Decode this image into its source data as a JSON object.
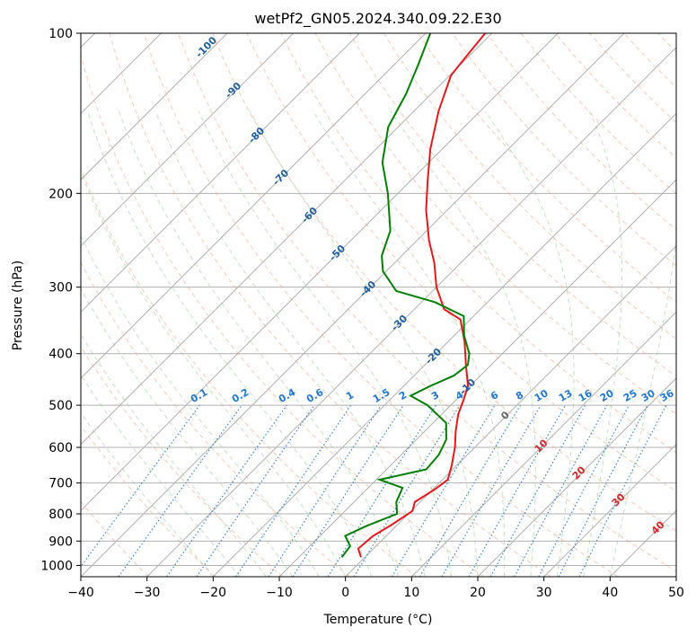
{
  "chart_data": {
    "type": "line",
    "title": "wetPf2_GN05.2024.340.09.22.E30",
    "xlabel": "Temperature (°C)",
    "ylabel": "Pressure (hPa)",
    "xlim": [
      -40,
      50
    ],
    "ylim": [
      1050,
      100
    ],
    "y_scale": "log",
    "skew": "45°",
    "x_ticks": [
      -40,
      -30,
      -20,
      -10,
      0,
      10,
      20,
      30,
      40,
      50
    ],
    "y_ticks": [
      100,
      200,
      300,
      400,
      500,
      600,
      700,
      800,
      900,
      1000
    ],
    "grid": true,
    "series": [
      {
        "role": "temperature",
        "color": "#e31a1c",
        "points": [
          {
            "p": 965,
            "t": -0.6
          },
          {
            "p": 930,
            "t": -2.3
          },
          {
            "p": 880,
            "t": -2.0
          },
          {
            "p": 840,
            "t": -0.9
          },
          {
            "p": 790,
            "t": 0.2
          },
          {
            "p": 760,
            "t": -0.8
          },
          {
            "p": 720,
            "t": 0.3
          },
          {
            "p": 690,
            "t": 0.8
          },
          {
            "p": 650,
            "t": -0.7
          },
          {
            "p": 600,
            "t": -3.0
          },
          {
            "p": 560,
            "t": -5.3
          },
          {
            "p": 520,
            "t": -7.5
          },
          {
            "p": 490,
            "t": -8.8
          },
          {
            "p": 460,
            "t": -10.3
          },
          {
            "p": 420,
            "t": -13.8
          },
          {
            "p": 380,
            "t": -17.5
          },
          {
            "p": 345,
            "t": -21.5
          },
          {
            "p": 330,
            "t": -25.5
          },
          {
            "p": 300,
            "t": -30.0
          },
          {
            "p": 270,
            "t": -34.0
          },
          {
            "p": 245,
            "t": -38.2
          },
          {
            "p": 215,
            "t": -43.2
          },
          {
            "p": 190,
            "t": -47.3
          },
          {
            "p": 165,
            "t": -51.8
          },
          {
            "p": 140,
            "t": -56.3
          },
          {
            "p": 120,
            "t": -59.8
          },
          {
            "p": 110,
            "t": -60.4
          },
          {
            "p": 100,
            "t": -61.0
          }
        ]
      },
      {
        "role": "dewpoint",
        "color": "#008000",
        "points": [
          {
            "p": 965,
            "t": -3.5
          },
          {
            "p": 920,
            "t": -3.9
          },
          {
            "p": 880,
            "t": -6.2
          },
          {
            "p": 845,
            "t": -4.6
          },
          {
            "p": 800,
            "t": -1.7
          },
          {
            "p": 760,
            "t": -3.6
          },
          {
            "p": 715,
            "t": -4.8
          },
          {
            "p": 690,
            "t": -9.5
          },
          {
            "p": 660,
            "t": -4.0
          },
          {
            "p": 620,
            "t": -4.3
          },
          {
            "p": 580,
            "t": -5.5
          },
          {
            "p": 540,
            "t": -8.0
          },
          {
            "p": 500,
            "t": -13.5
          },
          {
            "p": 480,
            "t": -17.5
          },
          {
            "p": 460,
            "t": -16.0
          },
          {
            "p": 440,
            "t": -14.0
          },
          {
            "p": 420,
            "t": -13.5
          },
          {
            "p": 400,
            "t": -15.0
          },
          {
            "p": 370,
            "t": -18.5
          },
          {
            "p": 340,
            "t": -21.5
          },
          {
            "p": 320,
            "t": -28.0
          },
          {
            "p": 305,
            "t": -35.5
          },
          {
            "p": 280,
            "t": -40.5
          },
          {
            "p": 262,
            "t": -43.0
          },
          {
            "p": 235,
            "t": -45.5
          },
          {
            "p": 200,
            "t": -51.5
          },
          {
            "p": 175,
            "t": -57.0
          },
          {
            "p": 150,
            "t": -61.5
          },
          {
            "p": 130,
            "t": -63.8
          },
          {
            "p": 115,
            "t": -66.3
          },
          {
            "p": 100,
            "t": -69.3
          }
        ]
      }
    ],
    "isotherm_labels": [
      "-100",
      "-90",
      "-80",
      "-70",
      "-60",
      "-50",
      "-40",
      "-30",
      "-20",
      "-10"
    ],
    "mixing_ratio_labels": [
      "0.1",
      "0.2",
      "0.4",
      "0.6",
      "1",
      "1.5",
      "2",
      "3",
      "4",
      "6",
      "8",
      "10",
      "13",
      "16",
      "20",
      "25",
      "30",
      "36"
    ],
    "dry_adiabat_labels": [
      "0",
      "10",
      "20",
      "30",
      "40"
    ],
    "colors": {
      "temperature": "#e31a1c",
      "dewpoint": "#008000",
      "dry_adiabat": "#f4a582",
      "moist_adiabat": "#8fca8f",
      "mixing_ratio": "#1f78d4",
      "isotherm_label": "#1f5f9f",
      "grid": "#b0b0b0"
    }
  }
}
